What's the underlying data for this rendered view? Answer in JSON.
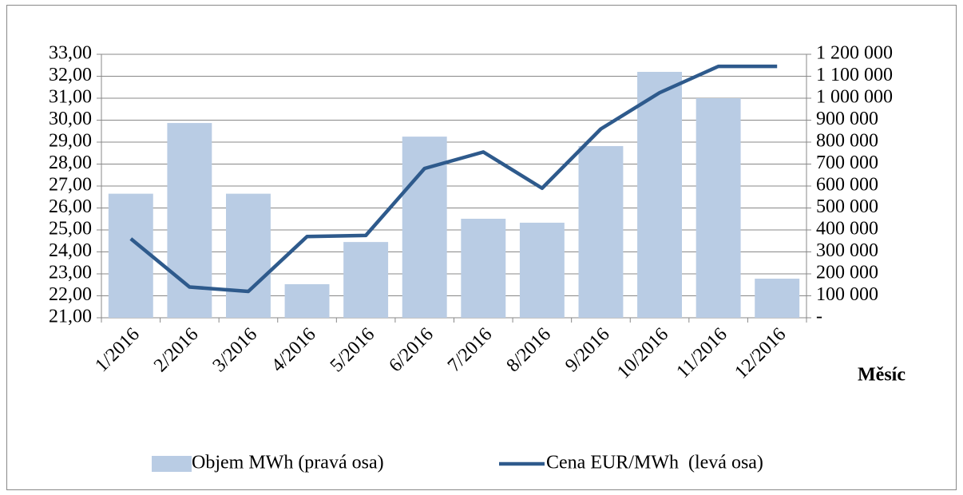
{
  "chart_data": {
    "type": "bar",
    "x_label": "Měsíc",
    "categories": [
      "1/2016",
      "2/2016",
      "3/2016",
      "4/2016",
      "5/2016",
      "6/2016",
      "7/2016",
      "8/2016",
      "9/2016",
      "10/2016",
      "11/2016",
      "12/2016"
    ],
    "series": [
      {
        "name": "Objem MWh (pravá osa)",
        "type": "bar",
        "axis": "y2",
        "color": "#b9cce4",
        "values": [
          565000,
          887000,
          565000,
          153000,
          345000,
          825000,
          451000,
          433000,
          782000,
          1120000,
          1000000,
          178000
        ]
      },
      {
        "name": "Cena EUR/MWh  (levá osa)",
        "type": "line",
        "axis": "y",
        "color": "#2e5a8c",
        "values": [
          24.6,
          22.4,
          22.2,
          24.7,
          24.75,
          27.8,
          28.55,
          26.9,
          29.6,
          31.25,
          32.45,
          32.45
        ]
      }
    ],
    "ylim": [
      21,
      33
    ],
    "yticks": [
      {
        "value": 21,
        "label": "21,00"
      },
      {
        "value": 22,
        "label": "22,00"
      },
      {
        "value": 23,
        "label": "23,00"
      },
      {
        "value": 24,
        "label": "24,00"
      },
      {
        "value": 25,
        "label": "25,00"
      },
      {
        "value": 26,
        "label": "26,00"
      },
      {
        "value": 27,
        "label": "27,00"
      },
      {
        "value": 28,
        "label": "28,00"
      },
      {
        "value": 29,
        "label": "29,00"
      },
      {
        "value": 30,
        "label": "30,00"
      },
      {
        "value": 31,
        "label": "31,00"
      },
      {
        "value": 32,
        "label": "32,00"
      },
      {
        "value": 33,
        "label": "33,00"
      }
    ],
    "y2lim": [
      0,
      1200000
    ],
    "y2ticks": [
      {
        "value": 0,
        "label": "-"
      },
      {
        "value": 100000,
        "label": "100 000"
      },
      {
        "value": 200000,
        "label": "200 000"
      },
      {
        "value": 300000,
        "label": "300 000"
      },
      {
        "value": 400000,
        "label": "400 000"
      },
      {
        "value": 500000,
        "label": "500 000"
      },
      {
        "value": 600000,
        "label": "600 000"
      },
      {
        "value": 700000,
        "label": "700 000"
      },
      {
        "value": 800000,
        "label": "800 000"
      },
      {
        "value": 900000,
        "label": "900 000"
      },
      {
        "value": 1000000,
        "label": "1 000 000"
      },
      {
        "value": 1100000,
        "label": "1 100 000"
      },
      {
        "value": 1200000,
        "label": "1 200 000"
      }
    ],
    "grid": true,
    "legend": "bottom"
  }
}
